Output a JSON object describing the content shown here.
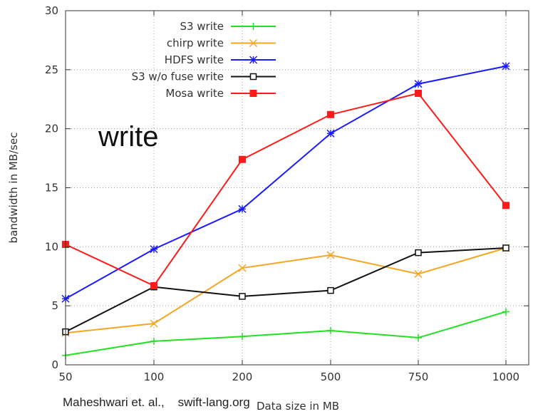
{
  "chart_data": {
    "type": "line",
    "title": "",
    "annotation": "write",
    "credit": "Maheshwari et. al.,    swift-lang.org",
    "xlabel": "Data size in MB",
    "ylabel": "bandwidth in MB/sec",
    "categories": [
      "50",
      "100",
      "200",
      "500",
      "750",
      "1000"
    ],
    "ylim": [
      0,
      30
    ],
    "yticks": [
      "0",
      "5",
      "10",
      "15",
      "20",
      "25",
      "30"
    ],
    "grid": true,
    "legend_position": "top-left",
    "series": [
      {
        "name": "S3 write",
        "color": "#22e022",
        "marker": "plus",
        "values": [
          0.8,
          2.0,
          2.4,
          2.9,
          2.3,
          4.5
        ]
      },
      {
        "name": "chirp write",
        "color": "#f5a623",
        "marker": "x",
        "values": [
          2.7,
          3.5,
          8.2,
          9.3,
          7.7,
          9.9
        ]
      },
      {
        "name": "HDFS write",
        "color": "#1a1aff",
        "marker": "star",
        "values": [
          5.6,
          9.8,
          13.2,
          19.6,
          23.8,
          25.3
        ]
      },
      {
        "name": "S3 w/o fuse write",
        "color": "#111111",
        "marker": "open-square",
        "values": [
          2.8,
          6.6,
          5.8,
          6.3,
          9.5,
          9.9
        ]
      },
      {
        "name": "Mosa write",
        "color": "#ff1a1a",
        "marker": "filled-square",
        "values": [
          10.2,
          6.7,
          17.4,
          21.2,
          23.0,
          13.5
        ]
      }
    ]
  }
}
